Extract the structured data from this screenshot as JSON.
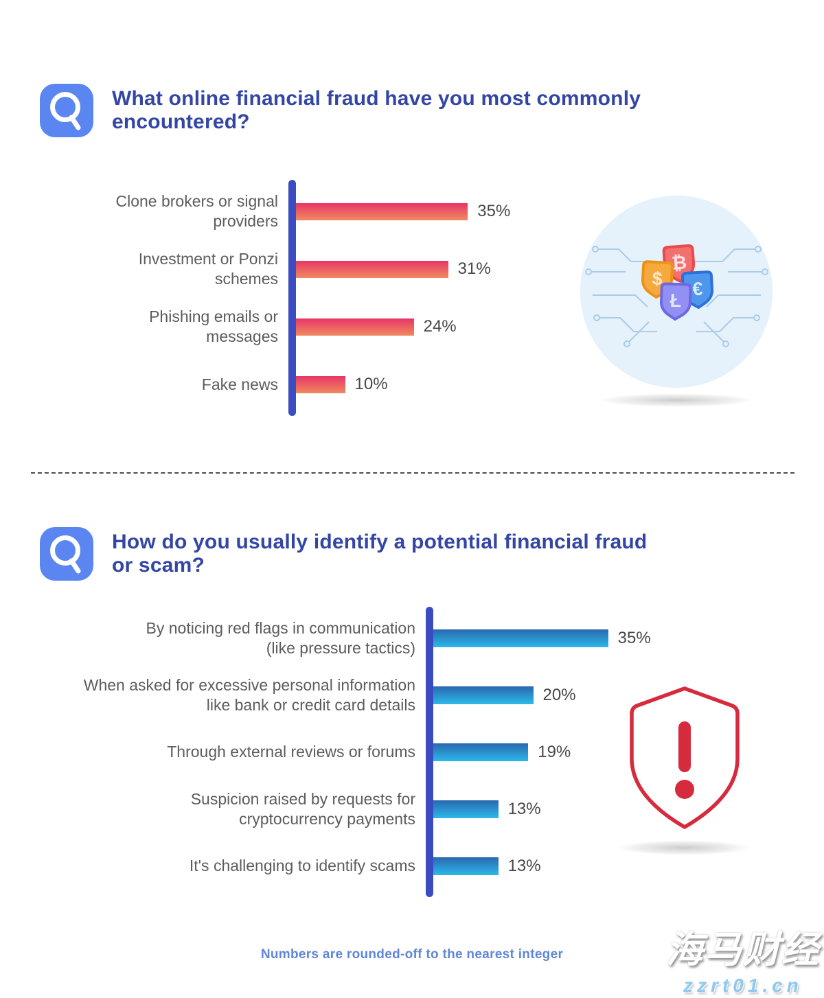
{
  "page": {
    "footer_note": "Numbers are rounded-off to the nearest integer",
    "watermark": {
      "line1": "海马财经",
      "line2": "zzrt01.cn"
    }
  },
  "questions": [
    {
      "title": "What online financial fraud have you most commonly\nencountered?"
    },
    {
      "title": "How do you usually identify a potential financial fraud\nor scam?"
    }
  ],
  "chart_data": [
    {
      "type": "bar",
      "orientation": "horizontal",
      "title": "What online financial fraud have you most commonly encountered?",
      "categories": [
        "Clone brokers or signal\nproviders",
        "Investment or Ponzi\nschemes",
        "Phishing emails or\nmessages",
        "Fake news"
      ],
      "values": [
        35,
        31,
        24,
        10
      ],
      "value_labels": [
        "35%",
        "31%",
        "24%",
        "10%"
      ],
      "xlim": [
        0,
        40
      ],
      "grid": false,
      "legend": "none",
      "axis_color": "#3b4cc0",
      "bar_colors": {
        "top": "#e73566",
        "bottom": "#f08a60"
      }
    },
    {
      "type": "bar",
      "orientation": "horizontal",
      "title": "How do you usually identify a potential financial fraud or scam?",
      "categories": [
        "By noticing red flags in communication\n(like pressure tactics)",
        "When asked for excessive personal information\nlike bank or credit card details",
        "Through external reviews or forums",
        "Suspicion raised by requests for\ncryptocurrency payments",
        "It's challenging to identify scams"
      ],
      "values": [
        35,
        20,
        19,
        13,
        13
      ],
      "value_labels": [
        "35%",
        "20%",
        "19%",
        "13%",
        "13%"
      ],
      "xlim": [
        0,
        40
      ],
      "grid": false,
      "legend": "none",
      "axis_color": "#3b4cc0",
      "bar_colors": {
        "top": "#2968af",
        "bottom": "#2cb9ea"
      }
    }
  ],
  "illustrations": {
    "currency_shields": {
      "symbols": [
        "$",
        "₿",
        "€",
        "Ł"
      ],
      "shield_colors": [
        "#f6a93d",
        "#f47070",
        "#4e97ec",
        "#9290f2"
      ]
    },
    "warning_shield": {
      "symbol": "!",
      "color": "#d62b3c"
    }
  },
  "colors": {
    "title_blue": "#3346a5",
    "question_icon_bg": "#5b86f2",
    "axis_blue": "#3b4cc0",
    "label_gray": "#5c5c5c",
    "value_gray": "#484848",
    "footer_blue": "#5f86d9",
    "divider_gray": "#4d4d4d",
    "illustration_circle_bg": "#e5f1fb",
    "circuit_line": "#aacbe9",
    "shield_red": "#d62b3c"
  }
}
